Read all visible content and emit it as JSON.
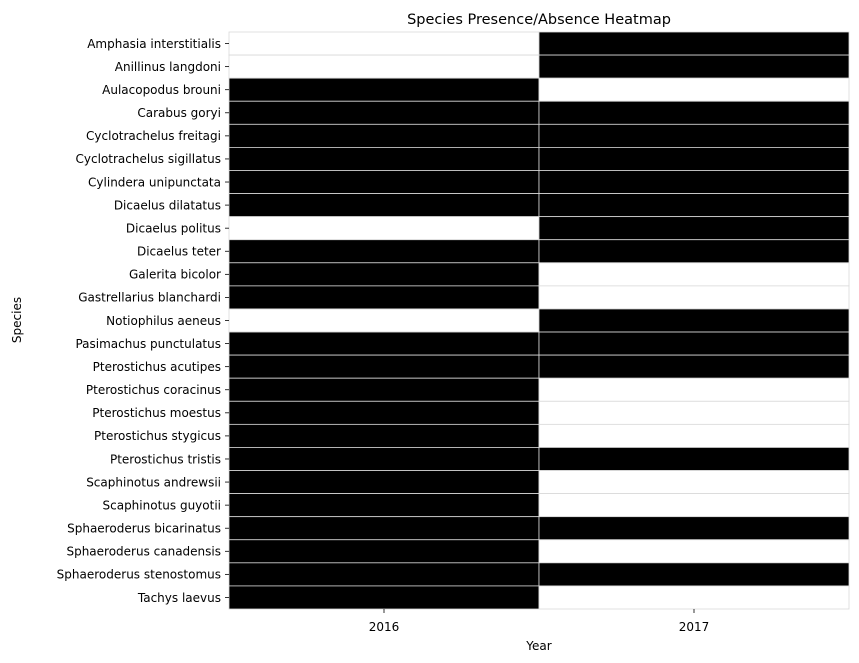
{
  "chart_data": {
    "type": "heatmap",
    "title": "Species Presence/Absence Heatmap",
    "xlabel": "Year",
    "ylabel": "Species",
    "x": [
      "2016",
      "2017"
    ],
    "y": [
      "Amphasia interstitialis",
      "Anillinus langdoni",
      "Aulacopodus brouni",
      "Carabus goryi",
      "Cyclotrachelus freitagi",
      "Cyclotrachelus sigillatus",
      "Cylindera unipunctata",
      "Dicaelus dilatatus",
      "Dicaelus politus",
      "Dicaelus teter",
      "Galerita bicolor",
      "Gastrellarius blanchardi",
      "Notiophilus aeneus",
      "Pasimachus punctulatus",
      "Pterostichus acutipes",
      "Pterostichus coracinus",
      "Pterostichus moestus",
      "Pterostichus stygicus",
      "Pterostichus tristis",
      "Scaphinotus andrewsii",
      "Scaphinotus guyotii",
      "Sphaeroderus bicarinatus",
      "Sphaeroderus canadensis",
      "Sphaeroderus stenostomus",
      "Tachys laevus"
    ],
    "values": [
      [
        0,
        1
      ],
      [
        0,
        1
      ],
      [
        1,
        0
      ],
      [
        1,
        1
      ],
      [
        1,
        1
      ],
      [
        1,
        1
      ],
      [
        1,
        1
      ],
      [
        1,
        1
      ],
      [
        0,
        1
      ],
      [
        1,
        1
      ],
      [
        1,
        0
      ],
      [
        1,
        0
      ],
      [
        0,
        1
      ],
      [
        1,
        1
      ],
      [
        1,
        1
      ],
      [
        1,
        0
      ],
      [
        1,
        0
      ],
      [
        1,
        0
      ],
      [
        1,
        1
      ],
      [
        1,
        0
      ],
      [
        1,
        0
      ],
      [
        1,
        1
      ],
      [
        1,
        0
      ],
      [
        1,
        1
      ],
      [
        1,
        0
      ]
    ],
    "colors": {
      "present": "#000000",
      "absent": "#ffffff",
      "cell_border": "#d9d9d9"
    },
    "grid": true,
    "colorbar": false
  }
}
